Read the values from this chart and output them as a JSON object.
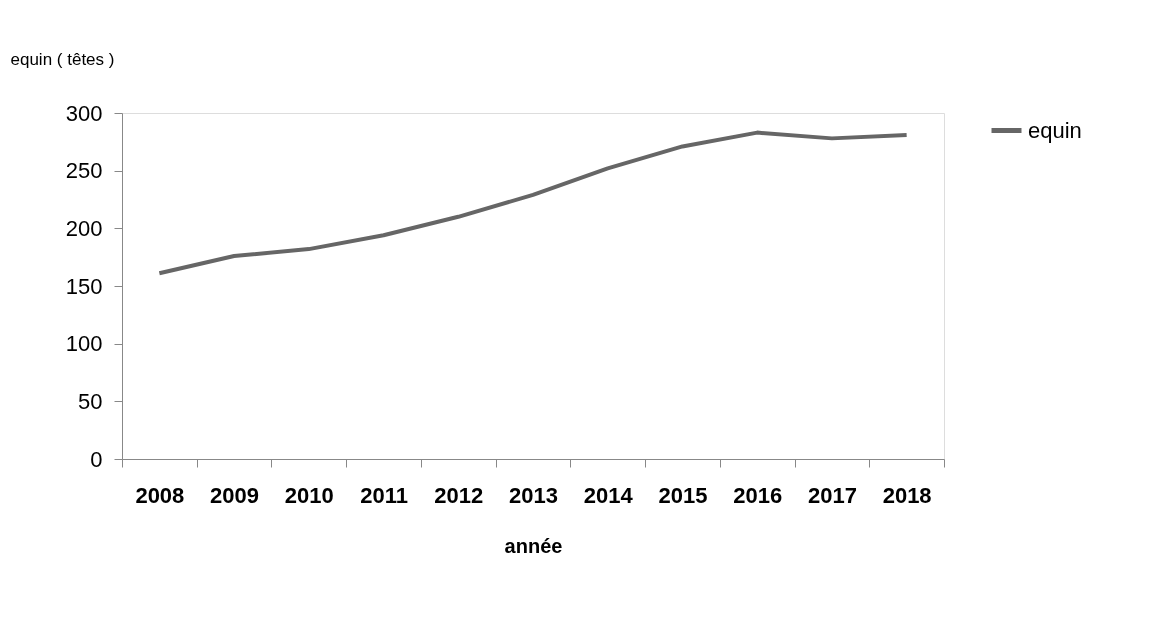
{
  "chart_data": {
    "type": "line",
    "ylabel": "equin ( têtes )",
    "xlabel": "année",
    "categories": [
      "2008",
      "2009",
      "2010",
      "2011",
      "2012",
      "2013",
      "2014",
      "2015",
      "2016",
      "2017",
      "2018"
    ],
    "series": [
      {
        "name": "equin",
        "color": "#666666",
        "values": [
          161,
          176,
          182,
          194,
          210,
          229,
          252,
          271,
          283,
          278,
          281
        ]
      }
    ],
    "ylim": [
      0,
      300
    ],
    "yticks": [
      0,
      50,
      100,
      150,
      200,
      250,
      300
    ],
    "grid": false,
    "legend": "right",
    "marker": "none",
    "line_style": "solid"
  }
}
